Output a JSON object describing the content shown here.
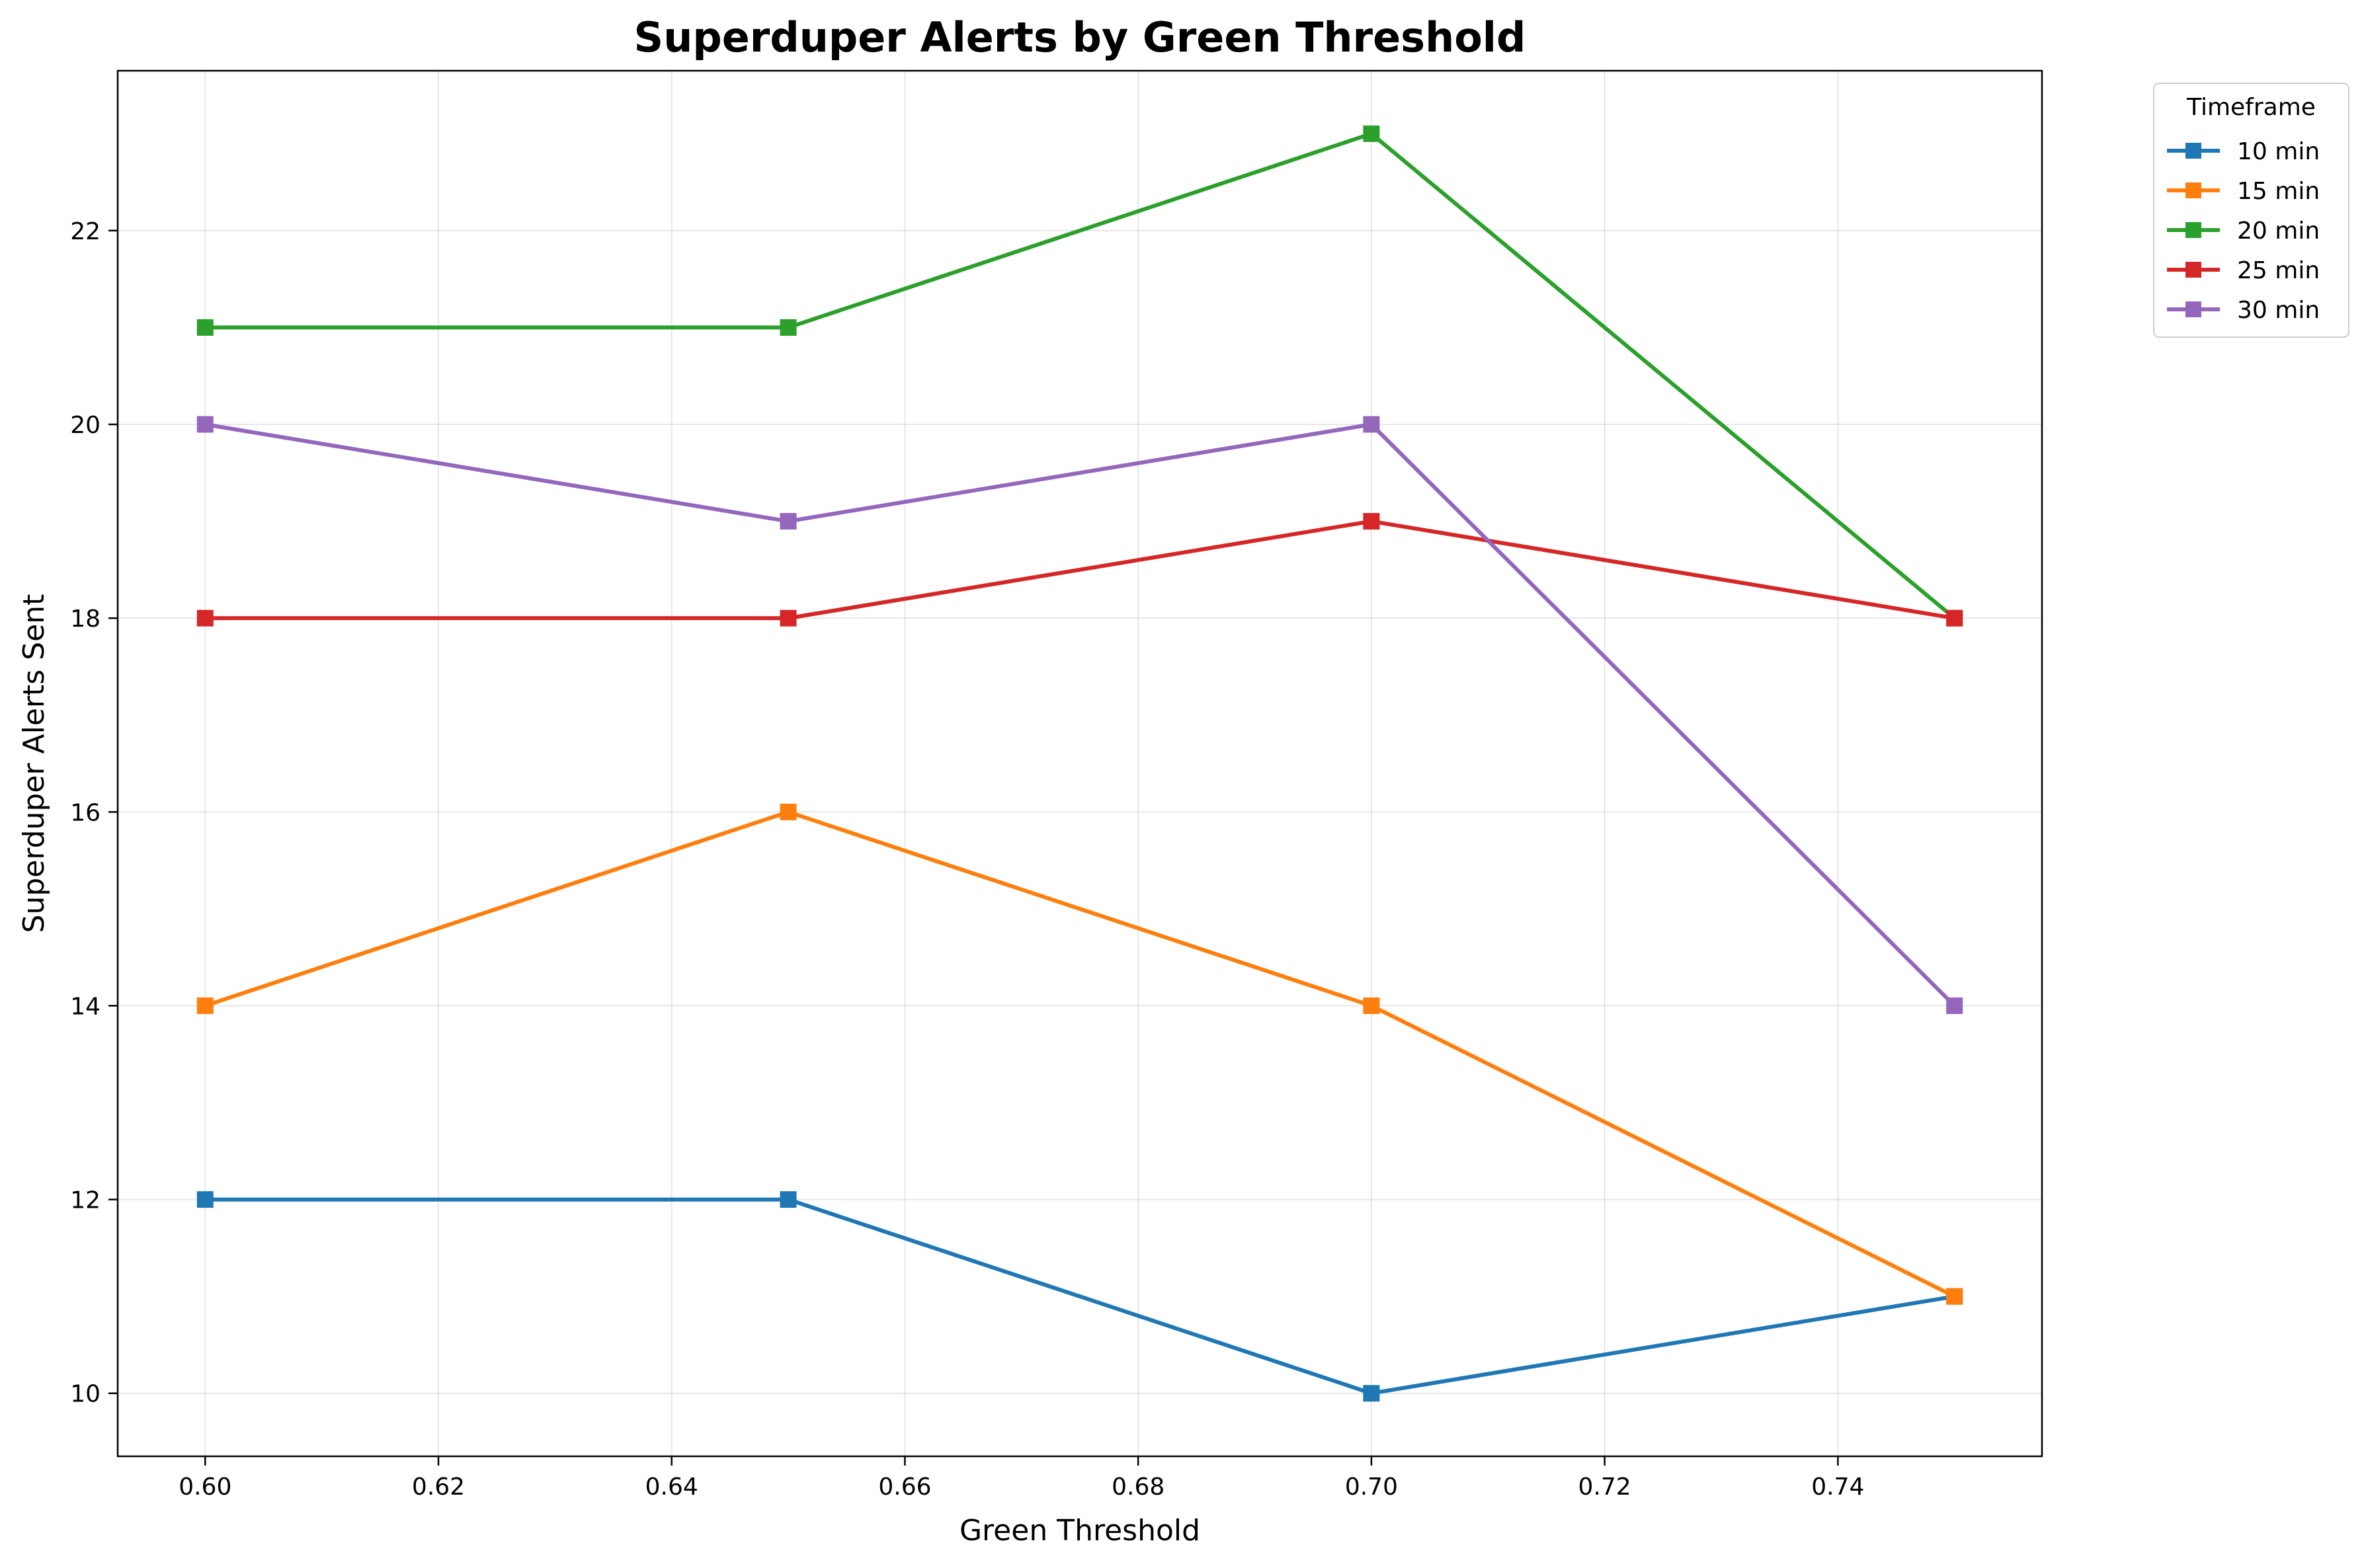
{
  "chart_data": {
    "type": "line",
    "title": "Superduper Alerts by Green Threshold",
    "xlabel": "Green Threshold",
    "ylabel": "Superduper Alerts Sent",
    "x": [
      0.6,
      0.65,
      0.7,
      0.75
    ],
    "xlim": [
      0.5925,
      0.7575
    ],
    "ylim": [
      9.35,
      23.65
    ],
    "xticks": [
      0.6,
      0.62,
      0.64,
      0.66,
      0.68,
      0.7,
      0.72,
      0.74
    ],
    "xtick_labels": [
      "0.60",
      "0.62",
      "0.64",
      "0.66",
      "0.68",
      "0.70",
      "0.72",
      "0.74"
    ],
    "yticks": [
      10,
      12,
      14,
      16,
      18,
      20,
      22
    ],
    "ytick_labels": [
      "10",
      "12",
      "14",
      "16",
      "18",
      "20",
      "22"
    ],
    "grid": true,
    "marker": "square",
    "legend": {
      "title": "Timeframe",
      "placement": "outside-top-right"
    },
    "series": [
      {
        "name": "10 min",
        "color": "#1f77b4",
        "values": [
          12,
          12,
          10,
          11
        ]
      },
      {
        "name": "15 min",
        "color": "#ff7f0e",
        "values": [
          14,
          16,
          14,
          11
        ]
      },
      {
        "name": "20 min",
        "color": "#2ca02c",
        "values": [
          21,
          21,
          23,
          18
        ]
      },
      {
        "name": "25 min",
        "color": "#d62728",
        "values": [
          18,
          18,
          19,
          18
        ]
      },
      {
        "name": "30 min",
        "color": "#9467bd",
        "values": [
          20,
          19,
          20,
          14
        ]
      }
    ]
  }
}
